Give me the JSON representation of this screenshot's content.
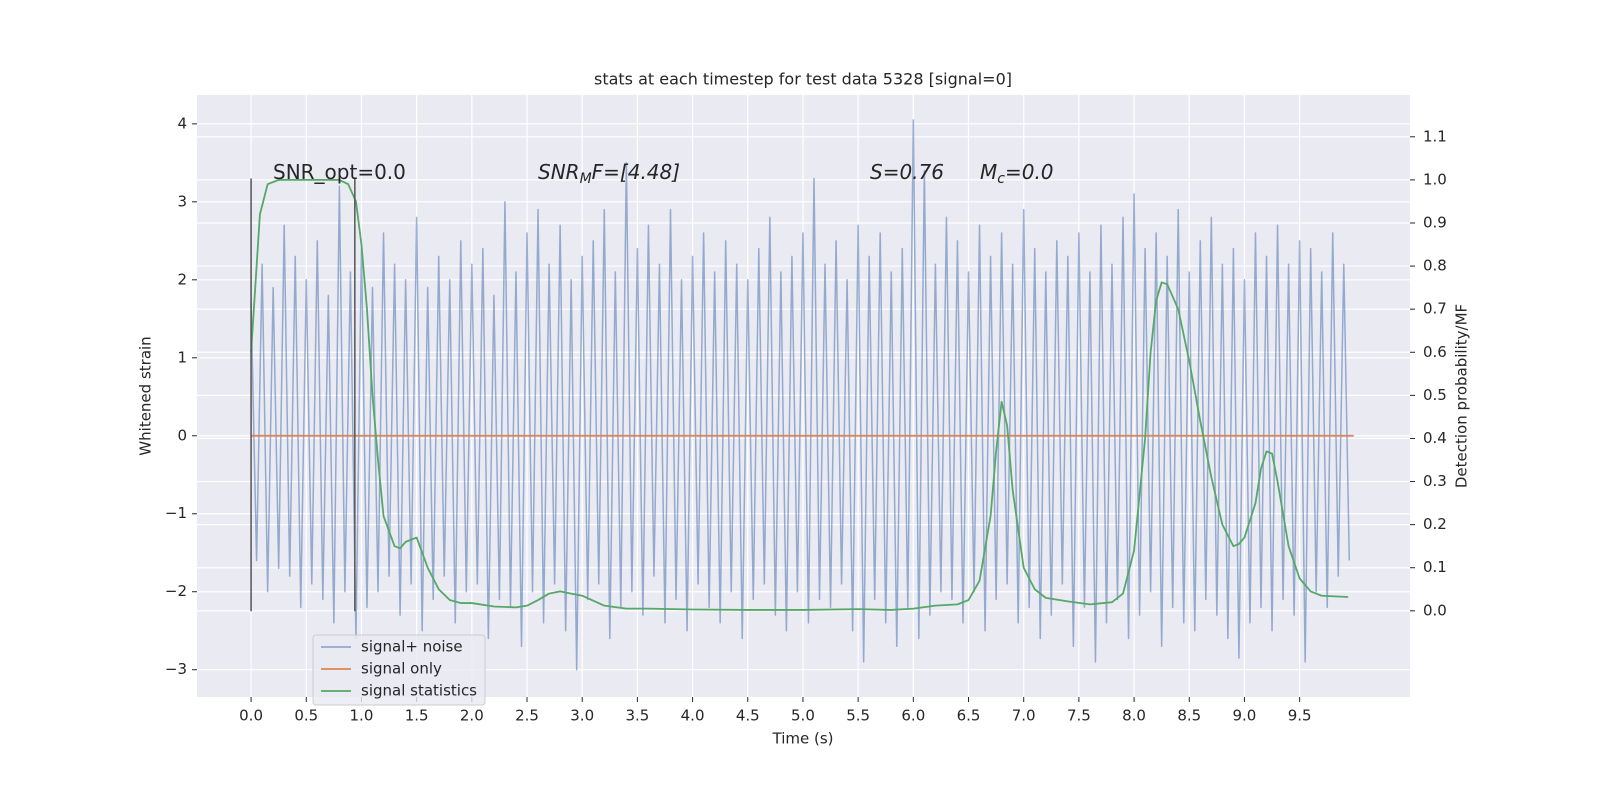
{
  "chart_data": {
    "type": "line",
    "title": "stats at each timestep for test data 5328 [signal=0]",
    "xlabel": "Time (s)",
    "ylabel": "Whitened strain",
    "y2label": "Detection probability/MF",
    "xlim": [
      -0.49,
      10.5
    ],
    "ylim": [
      -3.35,
      4.37
    ],
    "y2lim": [
      -0.2,
      1.197
    ],
    "xticks": [
      {
        "value": 0,
        "label": "0.0"
      },
      0.5,
      {
        "value": 1,
        "label": "1.0"
      },
      1.5,
      {
        "value": 2,
        "label": "2.0"
      },
      2.5,
      {
        "value": 3,
        "label": "3.0"
      },
      3.5,
      {
        "value": 4,
        "label": "4.0"
      },
      4.5,
      {
        "value": 5,
        "label": "5.0"
      },
      5.5,
      {
        "value": 6,
        "label": "6.0"
      },
      6.5,
      {
        "value": 7,
        "label": "7.0"
      },
      7.5,
      {
        "value": 8,
        "label": "8.0"
      },
      8.5,
      {
        "value": 9,
        "label": "9.0"
      },
      9.5
    ],
    "yticks": [
      {
        "value": -3,
        "label": "−3"
      },
      {
        "value": -2,
        "label": "−2"
      },
      {
        "value": -1,
        "label": "−1"
      },
      0,
      1,
      2,
      3,
      4
    ],
    "y2ticks": [
      {
        "value": 0,
        "label": "0.0"
      },
      0.1,
      0.2,
      0.3,
      0.4,
      0.5,
      0.6,
      0.7,
      0.8,
      0.9,
      {
        "value": 1,
        "label": "1.0"
      },
      1.1
    ],
    "grid": true,
    "legend": "lower left",
    "annotations": [
      {
        "parts": [
          "SNR_opt=0.0"
        ],
        "italic": false
      },
      {
        "parts": [
          "SNR",
          "M",
          "F=[4.48]"
        ],
        "italic": true
      },
      {
        "parts": [
          "S",
          "=0.76"
        ],
        "italic": true
      },
      {
        "parts": [
          "M",
          "c",
          "=0.0"
        ],
        "italic": true
      }
    ],
    "vlines": [
      {
        "x": 0,
        "ymin": -2.25,
        "ymax": 3.3
      },
      {
        "x": 0.94,
        "ymin": -2.25,
        "ymax": 3.3
      }
    ],
    "vline_color": "#555555",
    "series": [
      {
        "name": "signal+ noise",
        "color": "#4c72b0",
        "x": [
          0,
          0.05,
          0.1,
          0.15,
          0.2,
          0.25,
          0.3,
          0.35,
          0.4,
          0.45,
          0.5,
          0.55,
          0.6,
          0.65,
          0.7,
          0.75,
          0.8,
          0.85,
          0.9,
          0.95,
          1,
          1.05,
          1.1,
          1.15,
          1.2,
          1.25,
          1.3,
          1.35,
          1.4,
          1.45,
          1.5,
          1.55,
          1.6,
          1.65,
          1.7,
          1.75,
          1.8,
          1.85,
          1.9,
          1.95,
          2,
          2.05,
          2.1,
          2.15,
          2.2,
          2.25,
          2.3,
          2.35,
          2.4,
          2.45,
          2.5,
          2.55,
          2.6,
          2.65,
          2.7,
          2.75,
          2.8,
          2.85,
          2.9,
          2.95,
          3,
          3.05,
          3.1,
          3.15,
          3.2,
          3.25,
          3.3,
          3.35,
          3.4,
          3.45,
          3.5,
          3.55,
          3.6,
          3.65,
          3.7,
          3.75,
          3.8,
          3.85,
          3.9,
          3.95,
          4,
          4.05,
          4.1,
          4.15,
          4.2,
          4.25,
          4.3,
          4.35,
          4.4,
          4.45,
          4.5,
          4.55,
          4.6,
          4.65,
          4.7,
          4.75,
          4.8,
          4.85,
          4.9,
          4.95,
          5,
          5.05,
          5.1,
          5.15,
          5.2,
          5.25,
          5.3,
          5.35,
          5.4,
          5.45,
          5.5,
          5.55,
          5.6,
          5.65,
          5.7,
          5.75,
          5.8,
          5.85,
          5.9,
          5.95,
          6,
          6.05,
          6.1,
          6.15,
          6.2,
          6.25,
          6.3,
          6.35,
          6.4,
          6.45,
          6.5,
          6.55,
          6.6,
          6.65,
          6.7,
          6.75,
          6.8,
          6.85,
          6.9,
          6.95,
          7,
          7.05,
          7.1,
          7.15,
          7.2,
          7.25,
          7.3,
          7.35,
          7.4,
          7.45,
          7.5,
          7.55,
          7.6,
          7.65,
          7.7,
          7.75,
          7.8,
          7.85,
          7.9,
          7.95,
          8,
          8.05,
          8.1,
          8.15,
          8.2,
          8.25,
          8.3,
          8.35,
          8.4,
          8.45,
          8.5,
          8.55,
          8.6,
          8.65,
          8.7,
          8.75,
          8.8,
          8.85,
          8.9,
          8.95,
          9,
          9.05,
          9.1,
          9.15,
          9.2,
          9.25,
          9.3,
          9.35,
          9.4,
          9.45,
          9.5,
          9.55,
          9.6,
          9.65,
          9.7,
          9.75,
          9.8,
          9.85,
          9.9,
          9.95
        ],
        "values": [
          1.7,
          -1.6,
          2.2,
          -2.0,
          1.9,
          -1.7,
          2.7,
          -1.8,
          2.3,
          -2.2,
          2.0,
          -1.9,
          2.5,
          -2.1,
          1.8,
          -2.4,
          3.2,
          -2.0,
          2.1,
          -2.6,
          2.4,
          -2.2,
          1.9,
          -2.0,
          2.6,
          -1.8,
          2.2,
          -2.3,
          2.0,
          -1.9,
          2.8,
          -2.5,
          1.9,
          -2.1,
          2.3,
          -1.8,
          2.0,
          -2.4,
          2.5,
          -2.0,
          2.2,
          -1.9,
          2.4,
          -2.6,
          1.8,
          -2.1,
          3.0,
          -2.2,
          2.1,
          -2.7,
          2.6,
          -2.0,
          2.9,
          -2.4,
          2.2,
          -1.9,
          2.7,
          -2.5,
          2.0,
          -3.0,
          2.3,
          -2.1,
          2.5,
          -1.9,
          2.9,
          -2.6,
          2.1,
          -2.2,
          3.5,
          -2.0,
          2.4,
          -2.3,
          2.7,
          -1.8,
          2.2,
          -2.4,
          2.9,
          -2.1,
          2.0,
          -2.5,
          2.3,
          -1.9,
          2.6,
          -2.2,
          2.1,
          -2.4,
          2.5,
          -2.0,
          2.2,
          -2.6,
          2.0,
          -2.1,
          2.4,
          -1.9,
          2.8,
          -2.3,
          2.1,
          -2.5,
          2.3,
          -2.0,
          2.6,
          -2.4,
          3.3,
          -2.1,
          2.2,
          -2.2,
          2.5,
          -1.9,
          2.0,
          -2.5,
          2.7,
          -2.9,
          2.3,
          -2.1,
          2.6,
          -2.4,
          2.1,
          -2.7,
          2.4,
          -2.2,
          4.05,
          -2.6,
          3.4,
          -2.3,
          2.2,
          -2.0,
          2.8,
          -2.1,
          2.5,
          -2.4,
          2.1,
          -2.0,
          2.7,
          -2.5,
          2.3,
          -2.1,
          2.6,
          -1.9,
          2.2,
          -2.4,
          2.9,
          -2.2,
          2.4,
          -2.6,
          2.1,
          -2.3,
          2.5,
          -1.9,
          2.3,
          -2.7,
          2.6,
          -2.2,
          2.1,
          -2.9,
          2.7,
          -2.4,
          2.2,
          -2.1,
          2.8,
          -2.6,
          3.1,
          -2.3,
          2.4,
          -2.0,
          2.6,
          -2.7,
          2.3,
          -2.2,
          2.9,
          -2.4,
          2.1,
          -2.5,
          2.5,
          -2.1,
          2.8,
          -2.3,
          2.2,
          -2.6,
          2.4,
          -2.85,
          2.0,
          -2.4,
          2.6,
          -2.2,
          2.3,
          -2.5,
          2.7,
          -2.1,
          2.2,
          -2.3,
          2.5,
          -2.9,
          2.4,
          -2.0,
          2.1,
          -2.2,
          2.6,
          -1.8,
          2.2,
          -1.6
        ]
      },
      {
        "name": "signal only",
        "color": "#dd8452",
        "x": [
          0,
          9.99
        ],
        "values": [
          0,
          0
        ]
      },
      {
        "name": "signal statistics",
        "color": "#55a868",
        "axis": "y2",
        "x": [
          0,
          0.08,
          0.15,
          0.25,
          0.5,
          0.8,
          0.88,
          0.95,
          1,
          1.05,
          1.1,
          1.15,
          1.2,
          1.3,
          1.35,
          1.4,
          1.5,
          1.6,
          1.7,
          1.8,
          1.9,
          2,
          2.2,
          2.4,
          2.5,
          2.6,
          2.7,
          2.8,
          2.9,
          3,
          3.2,
          3.4,
          3.6,
          4,
          4.5,
          5,
          5.5,
          5.8,
          6,
          6.2,
          6.4,
          6.5,
          6.6,
          6.7,
          6.75,
          6.8,
          6.85,
          6.9,
          7,
          7.1,
          7.2,
          7.4,
          7.6,
          7.8,
          7.9,
          8,
          8.1,
          8.15,
          8.2,
          8.25,
          8.3,
          8.4,
          8.5,
          8.6,
          8.7,
          8.8,
          8.9,
          8.95,
          9,
          9.1,
          9.15,
          9.2,
          9.25,
          9.3,
          9.4,
          9.5,
          9.6,
          9.7,
          9.94
        ],
        "values": [
          0.6,
          0.92,
          0.99,
          1.0,
          1.0,
          1.0,
          0.99,
          0.95,
          0.85,
          0.7,
          0.5,
          0.35,
          0.22,
          0.15,
          0.145,
          0.16,
          0.17,
          0.1,
          0.05,
          0.025,
          0.018,
          0.018,
          0.01,
          0.008,
          0.012,
          0.025,
          0.04,
          0.045,
          0.04,
          0.035,
          0.012,
          0.005,
          0.005,
          0.003,
          0.002,
          0.002,
          0.004,
          0.002,
          0.005,
          0.012,
          0.015,
          0.025,
          0.07,
          0.22,
          0.37,
          0.485,
          0.43,
          0.28,
          0.1,
          0.05,
          0.03,
          0.022,
          0.015,
          0.02,
          0.04,
          0.14,
          0.4,
          0.6,
          0.72,
          0.762,
          0.758,
          0.7,
          0.58,
          0.44,
          0.31,
          0.2,
          0.15,
          0.155,
          0.17,
          0.25,
          0.33,
          0.37,
          0.365,
          0.3,
          0.15,
          0.075,
          0.045,
          0.035,
          0.032
        ]
      }
    ]
  }
}
